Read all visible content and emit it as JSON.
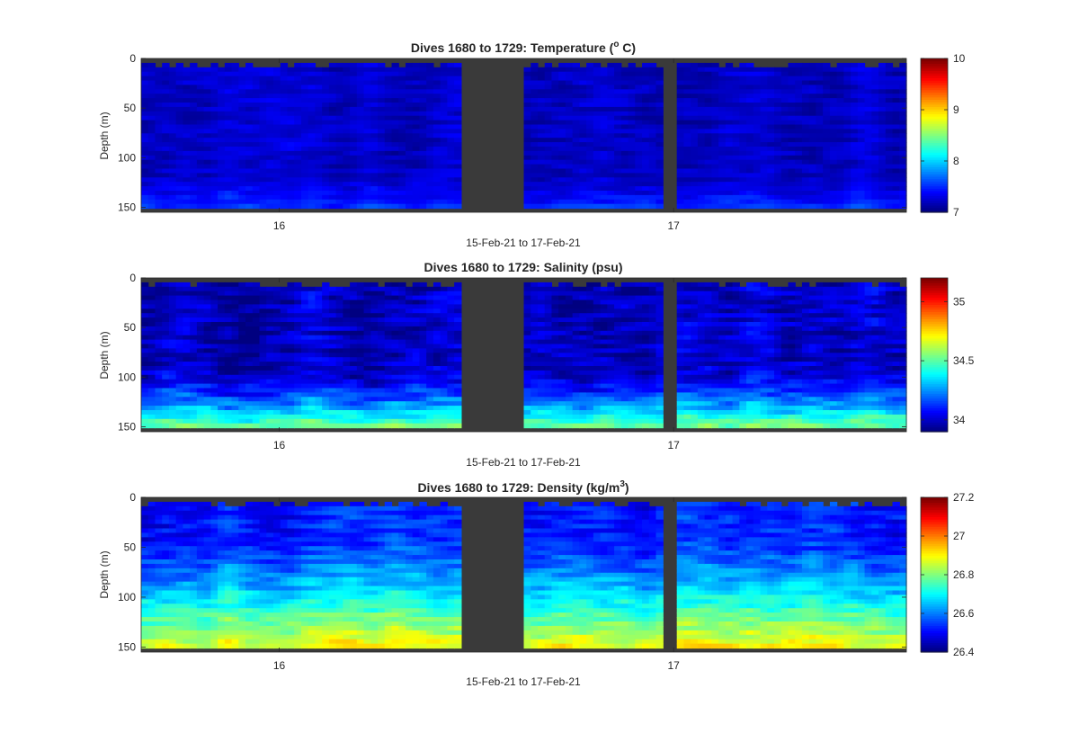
{
  "figure": {
    "background": "#ffffff",
    "nodata_color": "#3a3a3a",
    "axis_color": "#262626"
  },
  "chart_data": [
    {
      "type": "heatmap",
      "title": "Dives 1680 to 1729: Temperature (",
      "title_super": "o",
      "title_tail": " C)",
      "xlabel": "15-Feb-21 to 17-Feb-21",
      "ylabel": "Depth (m)",
      "xlim": [
        15.65,
        17.59
      ],
      "ylim": [
        0,
        155
      ],
      "y_reversed": true,
      "yticks": [
        0,
        50,
        100,
        150
      ],
      "xticks": [
        16,
        17
      ],
      "xticklabels": [
        "16",
        "17"
      ],
      "colormap": "jet",
      "clim": [
        7,
        10
      ],
      "cticks": [
        7,
        8,
        9,
        10
      ],
      "cticklabels": [
        "7",
        "8",
        "9",
        "10"
      ],
      "bottom_depth_m": 151,
      "data_gaps": [
        [
          16.465,
          16.625
        ],
        [
          16.975,
          17.01
        ]
      ],
      "field": {
        "surface_value": 7.22,
        "deep_value": 7.55,
        "gradient_start_m": 115,
        "profile_exponent": 1.6,
        "patch_amplitude": 0.12
      }
    },
    {
      "type": "heatmap",
      "title": "Dives 1680 to 1729: Salinity (psu)",
      "xlabel": "15-Feb-21 to 17-Feb-21",
      "ylabel": "Depth (m)",
      "xlim": [
        15.65,
        17.59
      ],
      "ylim": [
        0,
        155
      ],
      "y_reversed": true,
      "yticks": [
        0,
        50,
        100,
        150
      ],
      "xticks": [
        16,
        17
      ],
      "xticklabels": [
        "16",
        "17"
      ],
      "colormap": "jet",
      "clim": [
        33.9,
        35.2
      ],
      "cticks": [
        34,
        34.5,
        35
      ],
      "cticklabels": [
        "34",
        "34.5",
        "35"
      ],
      "bottom_depth_m": 151,
      "data_gaps": [
        [
          16.465,
          16.625
        ],
        [
          16.975,
          17.01
        ]
      ],
      "field": {
        "surface_value": 33.98,
        "deep_value": 34.55,
        "gradient_start_m": 90,
        "profile_exponent": 1.5,
        "patch_amplitude": 0.09
      }
    },
    {
      "type": "heatmap",
      "title": "Dives 1680 to 1729: Density (kg/m",
      "title_super": "3",
      "title_tail": ")",
      "xlabel": "15-Feb-21 to 17-Feb-21",
      "ylabel": "Depth (m)",
      "xlim": [
        15.65,
        17.59
      ],
      "ylim": [
        0,
        155
      ],
      "y_reversed": true,
      "yticks": [
        0,
        50,
        100,
        150
      ],
      "xticks": [
        16,
        17
      ],
      "xticklabels": [
        "16",
        "17"
      ],
      "colormap": "jet",
      "clim": [
        26.4,
        27.2
      ],
      "cticks": [
        26.4,
        26.6,
        26.8,
        27,
        27.2
      ],
      "cticklabels": [
        "26.4",
        "26.6",
        "26.8",
        "27",
        "27.2"
      ],
      "bottom_depth_m": 151,
      "data_gaps": [
        [
          16.465,
          16.625
        ],
        [
          16.975,
          17.01
        ]
      ],
      "field": {
        "surface_value": 26.52,
        "deep_value": 26.9,
        "gradient_start_m": 40,
        "profile_exponent": 1.3,
        "patch_amplitude": 0.05
      }
    }
  ]
}
